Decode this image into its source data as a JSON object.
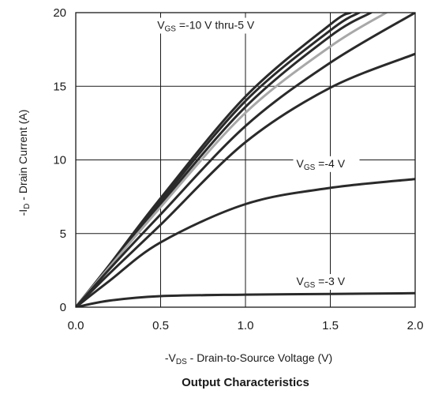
{
  "chart_data": {
    "type": "line",
    "title": "Output Characteristics",
    "xlabel": {
      "prefix": "-V",
      "sub": "DS",
      "rest": " - Drain-to-Source Voltage (V)"
    },
    "ylabel": {
      "prefix": "-I",
      "sub": "D",
      "rest": " - Drain Current (A)"
    },
    "xlim": [
      0,
      2.0
    ],
    "ylim": [
      0,
      20
    ],
    "xticks": [
      0.0,
      0.5,
      1.0,
      1.5,
      2.0
    ],
    "xtick_labels": [
      "0.0",
      "0.5",
      "1.0",
      "1.5",
      "2.0"
    ],
    "yticks": [
      0,
      5,
      10,
      15,
      20
    ],
    "ytick_labels": [
      "0",
      "5",
      "10",
      "15",
      "20"
    ],
    "grid": true,
    "series": [
      {
        "color": "#2a2a2a",
        "x": [
          0,
          0.2,
          0.5,
          1.0,
          1.5,
          1.62
        ],
        "y": [
          0,
          2.9,
          7.4,
          14.3,
          19.2,
          20
        ]
      },
      {
        "color": "#2a2a2a",
        "x": [
          0,
          0.2,
          0.5,
          1.0,
          1.5,
          1.67
        ],
        "y": [
          0,
          2.85,
          7.2,
          14.0,
          18.8,
          20
        ]
      },
      {
        "color": "#2a2a2a",
        "x": [
          0,
          0.2,
          0.5,
          1.0,
          1.5,
          1.74
        ],
        "y": [
          0,
          2.8,
          7.0,
          13.6,
          18.4,
          20
        ]
      },
      {
        "color": "#a8a8a8",
        "x": [
          0,
          0.2,
          0.5,
          1.0,
          1.5,
          1.83
        ],
        "y": [
          0,
          2.75,
          6.8,
          13.2,
          17.7,
          20
        ]
      },
      {
        "color": "#2a2a2a",
        "x": [
          0,
          0.2,
          0.5,
          1.0,
          1.5,
          2.0
        ],
        "y": [
          0,
          2.6,
          6.3,
          12.3,
          16.6,
          20
        ]
      },
      {
        "color": "#2a2a2a",
        "x": [
          0,
          0.2,
          0.5,
          1.0,
          1.5,
          2.0
        ],
        "y": [
          0,
          2.3,
          5.6,
          11.2,
          14.9,
          17.2
        ]
      },
      {
        "color": "#2a2a2a",
        "x": [
          0,
          0.2,
          0.5,
          1.0,
          1.5,
          2.0
        ],
        "y": [
          0,
          1.8,
          4.4,
          7.0,
          8.1,
          8.7
        ]
      },
      {
        "color": "#2a2a2a",
        "x": [
          0,
          0.2,
          0.5,
          1.0,
          1.5,
          2.0
        ],
        "y": [
          0,
          0.45,
          0.75,
          0.85,
          0.9,
          0.95
        ]
      }
    ],
    "annotations": [
      {
        "prefix": "V",
        "sub": "GS",
        "rest": " =-10 V thru-5 V",
        "x": 0.48,
        "y": 18.9
      },
      {
        "prefix": "V",
        "sub": "GS",
        "rest": " =-4 V",
        "x": 1.3,
        "y": 9.5
      },
      {
        "prefix": "V",
        "sub": "GS",
        "rest": " =-3 V",
        "x": 1.3,
        "y": 1.5
      }
    ]
  },
  "colors": {
    "frame": "#1a1a1a",
    "curve": "#2a2a2a",
    "curve_highlight": "#a8a8a8"
  }
}
